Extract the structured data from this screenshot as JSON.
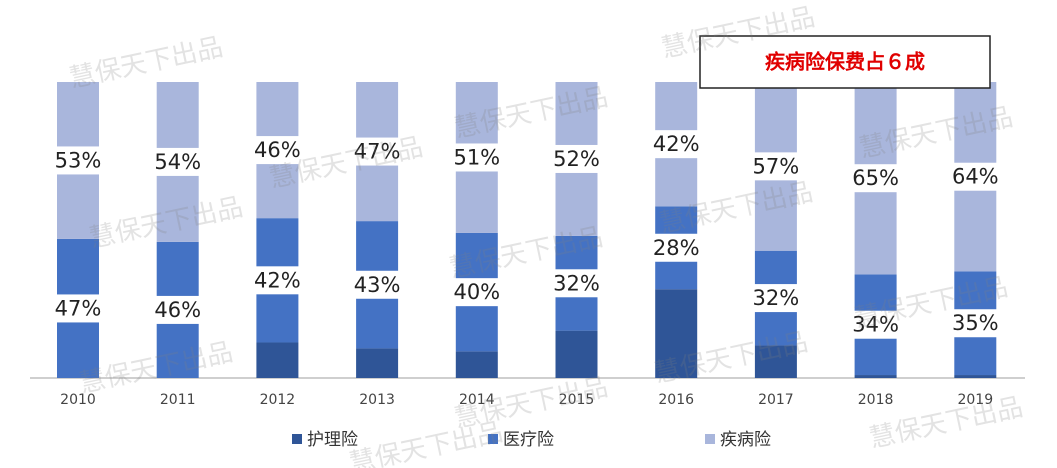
{
  "chart_data": {
    "type": "stacked_bar",
    "categories": [
      "2010",
      "2011",
      "2012",
      "2013",
      "2014",
      "2015",
      "2016",
      "2017",
      "2018",
      "2019"
    ],
    "series": [
      {
        "name": "护理险",
        "color": "#2f5597",
        "values": [
          0,
          0,
          12,
          10,
          9,
          16,
          30,
          11,
          1,
          1
        ]
      },
      {
        "name": "医疗险",
        "color": "#4472c4",
        "values": [
          47,
          46,
          42,
          43,
          40,
          32,
          28,
          32,
          34,
          35
        ],
        "value_labels": [
          "47%",
          "46%",
          "42%",
          "43%",
          "40%",
          "32%",
          "28%",
          "32%",
          "34%",
          "35%"
        ]
      },
      {
        "name": "疾病险",
        "color": "#a9b6dc",
        "values": [
          53,
          54,
          46,
          47,
          51,
          52,
          42,
          57,
          65,
          64
        ],
        "value_labels": [
          "53%",
          "54%",
          "46%",
          "47%",
          "51%",
          "52%",
          "42%",
          "57%",
          "65%",
          "64%"
        ]
      }
    ],
    "ylim": [
      0,
      100
    ],
    "annotation": "疾病险保费占６成",
    "watermark": "慧保天下出品",
    "legend": "bottom"
  }
}
